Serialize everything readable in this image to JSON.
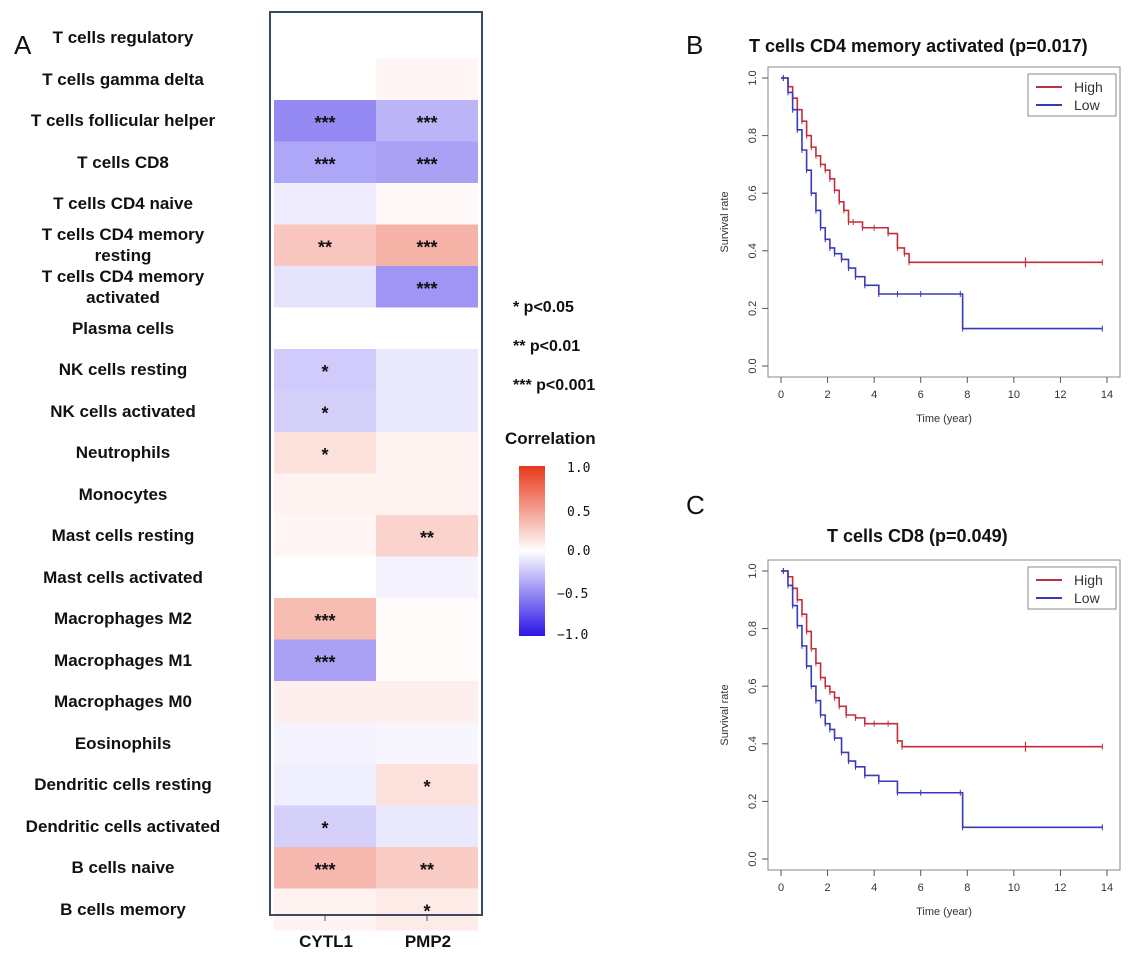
{
  "panels": {
    "a": "A",
    "b": "B",
    "c": "C"
  },
  "chart_data": [
    {
      "type": "heatmap",
      "rows": [
        "T cells regulatory",
        "T cells gamma delta",
        "T cells follicular helper",
        "T cells CD8",
        "T cells CD4 naive",
        "T cells CD4 memory resting",
        "T cells CD4 memory activated",
        "Plasma cells",
        "NK cells resting",
        "NK cells activated",
        "Neutrophils",
        "Monocytes",
        "Mast cells resting",
        "Mast cells activated",
        "Macrophages M2",
        "Macrophages M1",
        "Macrophages M0",
        "Eosinophils",
        "Dendritic cells resting",
        "Dendritic cells activated",
        "B cells naive",
        "B cells memory"
      ],
      "row_display": [
        [
          "T cells regulatory"
        ],
        [
          "T cells gamma delta"
        ],
        [
          "T cells follicular helper"
        ],
        [
          "T cells CD8"
        ],
        [
          "T cells CD4 naive"
        ],
        [
          "T cells CD4 memory",
          "resting"
        ],
        [
          "T cells CD4 memory",
          "activated"
        ],
        [
          "Plasma cells"
        ],
        [
          "NK cells resting"
        ],
        [
          "NK cells activated"
        ],
        [
          "Neutrophils"
        ],
        [
          "Monocytes"
        ],
        [
          "Mast cells resting"
        ],
        [
          "Mast cells activated"
        ],
        [
          "Macrophages M2"
        ],
        [
          "Macrophages M1"
        ],
        [
          "Macrophages M0"
        ],
        [
          "Eosinophils"
        ],
        [
          "Dendritic cells resting"
        ],
        [
          "Dendritic cells activated"
        ],
        [
          "B cells naive"
        ],
        [
          "B cells memory"
        ]
      ],
      "columns": [
        "CYTL1",
        "PMP2"
      ],
      "values": [
        [
          0.0,
          0.0
        ],
        [
          0.0,
          0.05
        ],
        [
          -0.5,
          -0.32
        ],
        [
          -0.38,
          -0.4
        ],
        [
          -0.08,
          0.03
        ],
        [
          0.28,
          0.38
        ],
        [
          -0.12,
          -0.45
        ],
        [
          0.0,
          0.0
        ],
        [
          -0.22,
          -0.1
        ],
        [
          -0.2,
          -0.1
        ],
        [
          0.15,
          0.06
        ],
        [
          0.06,
          0.06
        ],
        [
          0.05,
          0.22
        ],
        [
          0.0,
          -0.05
        ],
        [
          0.33,
          0.02
        ],
        [
          -0.4,
          0.02
        ],
        [
          0.08,
          0.08
        ],
        [
          -0.05,
          -0.04
        ],
        [
          -0.07,
          0.15
        ],
        [
          -0.2,
          -0.1
        ],
        [
          0.35,
          0.25
        ],
        [
          0.06,
          0.1
        ]
      ],
      "significance": [
        [
          "",
          ""
        ],
        [
          "",
          ""
        ],
        [
          "***",
          "***"
        ],
        [
          "***",
          "***"
        ],
        [
          "",
          ""
        ],
        [
          "**",
          "***"
        ],
        [
          "",
          "***"
        ],
        [
          "",
          ""
        ],
        [
          "*",
          ""
        ],
        [
          "*",
          ""
        ],
        [
          "*",
          ""
        ],
        [
          "",
          ""
        ],
        [
          "",
          "**"
        ],
        [
          "",
          ""
        ],
        [
          "***",
          ""
        ],
        [
          "***",
          ""
        ],
        [
          "",
          ""
        ],
        [
          "",
          ""
        ],
        [
          "",
          "*"
        ],
        [
          "*",
          ""
        ],
        [
          "***",
          "**"
        ],
        [
          "",
          "*"
        ]
      ],
      "legend": {
        "title": "Correlation",
        "ticks": [
          "1.0",
          "0.5",
          "0.0",
          "−0.5",
          "−1.0"
        ],
        "range": [
          -1,
          1
        ],
        "colors": {
          "low": "#2b14e6",
          "mid": "#ffffff",
          "high": "#e8381a"
        }
      },
      "significance_key": [
        "* p<0.05",
        "** p<0.01",
        "*** p<0.001"
      ]
    },
    {
      "type": "line",
      "title": "T cells CD4 memory activated (p=0.017)",
      "xlabel": "Time (year)",
      "ylabel": "Survival rate",
      "xlim": [
        0,
        14
      ],
      "ylim": [
        0,
        1
      ],
      "xticks": [
        0,
        2,
        4,
        6,
        8,
        10,
        12,
        14
      ],
      "yticks": [
        0.0,
        0.2,
        0.4,
        0.6,
        0.8,
        1.0
      ],
      "legend_position": "top-right",
      "series": [
        {
          "name": "High",
          "color": "#c0303a",
          "x": [
            0.1,
            0.3,
            0.5,
            0.7,
            0.9,
            1.1,
            1.3,
            1.5,
            1.7,
            1.9,
            2.1,
            2.3,
            2.5,
            2.7,
            2.9,
            3.1,
            3.5,
            4.0,
            4.6,
            5.0,
            5.3,
            5.5,
            13.8
          ],
          "y": [
            1.0,
            0.97,
            0.93,
            0.89,
            0.85,
            0.8,
            0.76,
            0.73,
            0.7,
            0.68,
            0.65,
            0.61,
            0.57,
            0.54,
            0.5,
            0.5,
            0.48,
            0.48,
            0.46,
            0.41,
            0.39,
            0.36,
            0.36
          ],
          "censor_x": [
            10.5
          ]
        },
        {
          "name": "Low",
          "color": "#3a3ab8",
          "x": [
            0.1,
            0.3,
            0.5,
            0.7,
            0.9,
            1.1,
            1.3,
            1.5,
            1.7,
            1.9,
            2.1,
            2.3,
            2.6,
            2.9,
            3.2,
            3.6,
            4.2,
            5.0,
            6.0,
            7.7,
            7.8,
            13.8
          ],
          "y": [
            1.0,
            0.95,
            0.89,
            0.82,
            0.75,
            0.68,
            0.6,
            0.54,
            0.48,
            0.44,
            0.41,
            0.39,
            0.37,
            0.34,
            0.31,
            0.28,
            0.25,
            0.25,
            0.25,
            0.25,
            0.13,
            0.13
          ],
          "censor_x": []
        }
      ]
    },
    {
      "type": "line",
      "title": "T cells CD8 (p=0.049)",
      "xlabel": "Time (year)",
      "ylabel": "Survival rate",
      "xlim": [
        0,
        14
      ],
      "ylim": [
        0,
        1
      ],
      "xticks": [
        0,
        2,
        4,
        6,
        8,
        10,
        12,
        14
      ],
      "yticks": [
        0.0,
        0.2,
        0.4,
        0.6,
        0.8,
        1.0
      ],
      "legend_position": "top-right",
      "series": [
        {
          "name": "High",
          "color": "#c0303a",
          "x": [
            0.1,
            0.3,
            0.5,
            0.7,
            0.9,
            1.1,
            1.3,
            1.5,
            1.7,
            1.9,
            2.1,
            2.3,
            2.5,
            2.8,
            3.2,
            3.6,
            4.0,
            4.6,
            5.0,
            5.2,
            13.8
          ],
          "y": [
            1.0,
            0.98,
            0.94,
            0.9,
            0.85,
            0.79,
            0.73,
            0.68,
            0.63,
            0.6,
            0.58,
            0.56,
            0.53,
            0.5,
            0.49,
            0.47,
            0.47,
            0.47,
            0.41,
            0.39,
            0.39
          ],
          "censor_x": [
            10.5
          ]
        },
        {
          "name": "Low",
          "color": "#3a3ab8",
          "x": [
            0.1,
            0.3,
            0.5,
            0.7,
            0.9,
            1.1,
            1.3,
            1.5,
            1.7,
            1.9,
            2.1,
            2.3,
            2.6,
            2.9,
            3.2,
            3.6,
            4.2,
            5.0,
            6.0,
            7.7,
            7.8,
            13.8
          ],
          "y": [
            1.0,
            0.95,
            0.88,
            0.81,
            0.74,
            0.67,
            0.6,
            0.55,
            0.5,
            0.47,
            0.45,
            0.42,
            0.37,
            0.34,
            0.32,
            0.29,
            0.27,
            0.23,
            0.23,
            0.23,
            0.11,
            0.11
          ],
          "censor_x": []
        }
      ]
    }
  ]
}
